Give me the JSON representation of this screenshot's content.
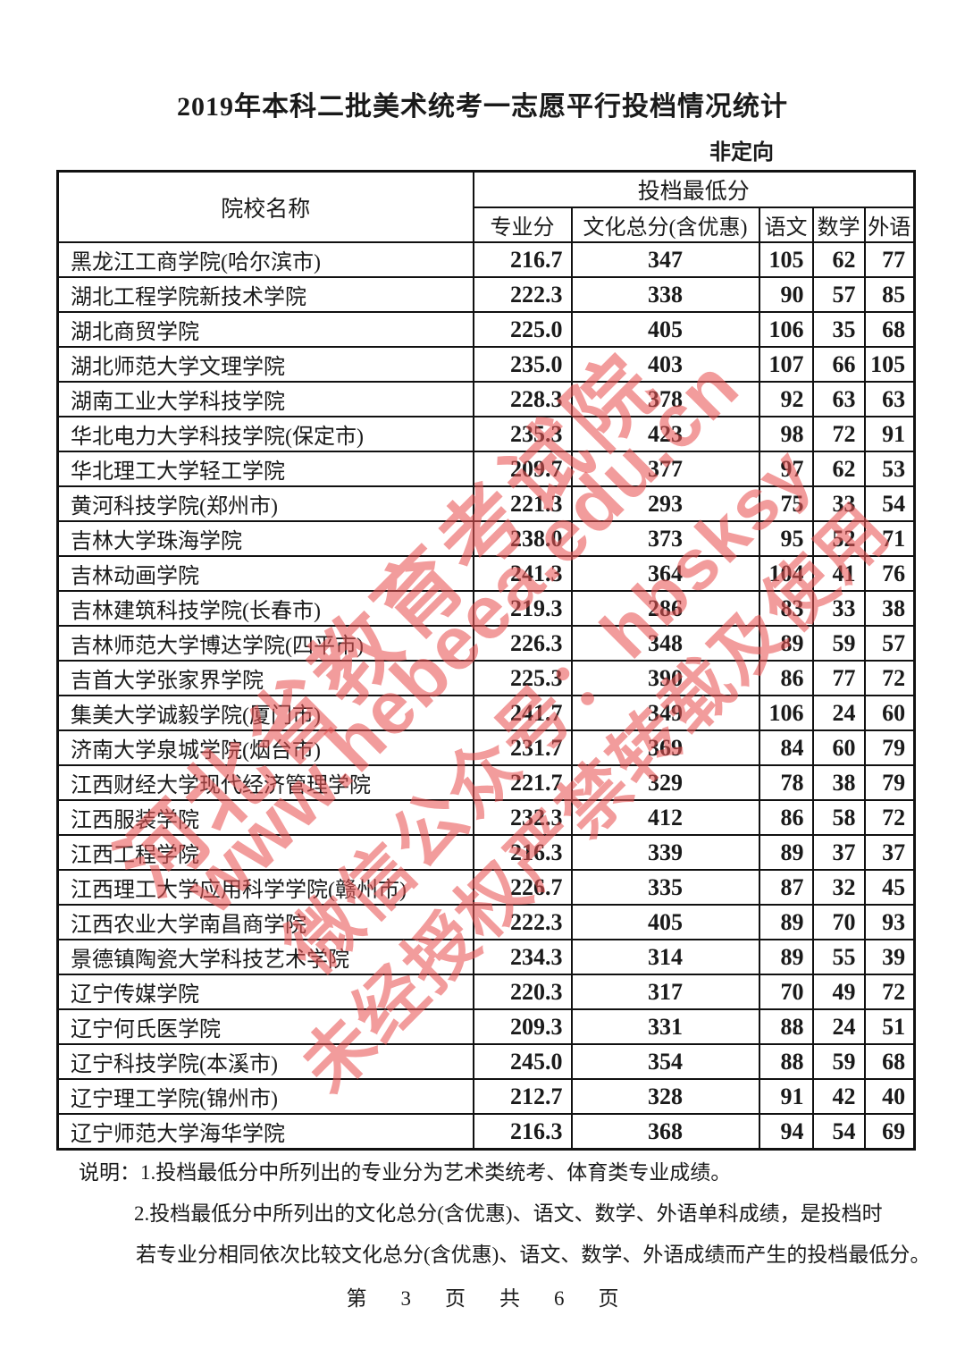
{
  "page": {
    "title": "2019年本科二批美术统考一志愿平行投档情况统计",
    "subtitle": "非定向"
  },
  "table": {
    "col_school": "院校名称",
    "col_group": "投档最低分",
    "columns": [
      "专业分",
      "文化总分(含优惠)",
      "语文",
      "数学",
      "外语"
    ],
    "rows": [
      {
        "school": "黑龙江工商学院(哈尔滨市)",
        "major": "216.7",
        "culture": "347",
        "chinese": "105",
        "math": "62",
        "foreign": "77"
      },
      {
        "school": "湖北工程学院新技术学院",
        "major": "222.3",
        "culture": "338",
        "chinese": "90",
        "math": "57",
        "foreign": "85"
      },
      {
        "school": "湖北商贸学院",
        "major": "225.0",
        "culture": "405",
        "chinese": "106",
        "math": "35",
        "foreign": "68"
      },
      {
        "school": "湖北师范大学文理学院",
        "major": "235.0",
        "culture": "403",
        "chinese": "107",
        "math": "66",
        "foreign": "105"
      },
      {
        "school": "湖南工业大学科技学院",
        "major": "228.3",
        "culture": "378",
        "chinese": "92",
        "math": "63",
        "foreign": "63"
      },
      {
        "school": "华北电力大学科技学院(保定市)",
        "major": "235.3",
        "culture": "423",
        "chinese": "98",
        "math": "72",
        "foreign": "91"
      },
      {
        "school": "华北理工大学轻工学院",
        "major": "209.7",
        "culture": "377",
        "chinese": "97",
        "math": "62",
        "foreign": "53"
      },
      {
        "school": "黄河科技学院(郑州市)",
        "major": "221.3",
        "culture": "293",
        "chinese": "75",
        "math": "33",
        "foreign": "54"
      },
      {
        "school": "吉林大学珠海学院",
        "major": "238.0",
        "culture": "373",
        "chinese": "95",
        "math": "52",
        "foreign": "71"
      },
      {
        "school": "吉林动画学院",
        "major": "241.3",
        "culture": "364",
        "chinese": "104",
        "math": "41",
        "foreign": "76"
      },
      {
        "school": "吉林建筑科技学院(长春市)",
        "major": "219.3",
        "culture": "286",
        "chinese": "83",
        "math": "33",
        "foreign": "38"
      },
      {
        "school": "吉林师范大学博达学院(四平市)",
        "major": "226.3",
        "culture": "348",
        "chinese": "89",
        "math": "59",
        "foreign": "57"
      },
      {
        "school": "吉首大学张家界学院",
        "major": "225.3",
        "culture": "390",
        "chinese": "86",
        "math": "77",
        "foreign": "72"
      },
      {
        "school": "集美大学诚毅学院(厦门市)",
        "major": "241.7",
        "culture": "349",
        "chinese": "106",
        "math": "24",
        "foreign": "60"
      },
      {
        "school": "济南大学泉城学院(烟台市)",
        "major": "231.7",
        "culture": "369",
        "chinese": "84",
        "math": "60",
        "foreign": "79"
      },
      {
        "school": "江西财经大学现代经济管理学院",
        "major": "221.7",
        "culture": "329",
        "chinese": "78",
        "math": "38",
        "foreign": "79"
      },
      {
        "school": "江西服装学院",
        "major": "232.3",
        "culture": "412",
        "chinese": "86",
        "math": "58",
        "foreign": "72"
      },
      {
        "school": "江西工程学院",
        "major": "216.3",
        "culture": "339",
        "chinese": "89",
        "math": "37",
        "foreign": "37"
      },
      {
        "school": "江西理工大学应用科学学院(赣州市)",
        "major": "226.7",
        "culture": "335",
        "chinese": "87",
        "math": "32",
        "foreign": "45"
      },
      {
        "school": "江西农业大学南昌商学院",
        "major": "222.3",
        "culture": "405",
        "chinese": "89",
        "math": "70",
        "foreign": "93"
      },
      {
        "school": "景德镇陶瓷大学科技艺术学院",
        "major": "234.3",
        "culture": "314",
        "chinese": "89",
        "math": "55",
        "foreign": "39"
      },
      {
        "school": "辽宁传媒学院",
        "major": "220.3",
        "culture": "317",
        "chinese": "70",
        "math": "49",
        "foreign": "72"
      },
      {
        "school": "辽宁何氏医学院",
        "major": "209.3",
        "culture": "331",
        "chinese": "88",
        "math": "24",
        "foreign": "51"
      },
      {
        "school": "辽宁科技学院(本溪市)",
        "major": "245.0",
        "culture": "354",
        "chinese": "88",
        "math": "59",
        "foreign": "68"
      },
      {
        "school": "辽宁理工学院(锦州市)",
        "major": "212.7",
        "culture": "328",
        "chinese": "91",
        "math": "42",
        "foreign": "40"
      },
      {
        "school": "辽宁师范大学海华学院",
        "major": "216.3",
        "culture": "368",
        "chinese": "94",
        "math": "54",
        "foreign": "69"
      }
    ]
  },
  "notes": {
    "line1": "说明：1.投档最低分中所列出的专业分为艺术类统考、体育类专业成绩。",
    "line2": "2.投档最低分中所列出的文化总分(含优惠)、语文、数学、外语单科成绩，是投档时",
    "line3": "若专业分相同依次比较文化总分(含优惠)、语文、数学、外语成绩而产生的投档最低分。"
  },
  "footer": {
    "parts": [
      "第",
      "3",
      "页",
      "共",
      "6",
      "页"
    ]
  },
  "watermark": {
    "color": "rgba(232,85,85,0.58)",
    "lines": [
      {
        "text": "河北省教育考试院"
      },
      {
        "text": "www.hebeea.edu.cn"
      },
      {
        "text": "微信公众号：hbsksy"
      },
      {
        "text": "未经授权严禁转载及使用"
      }
    ]
  }
}
